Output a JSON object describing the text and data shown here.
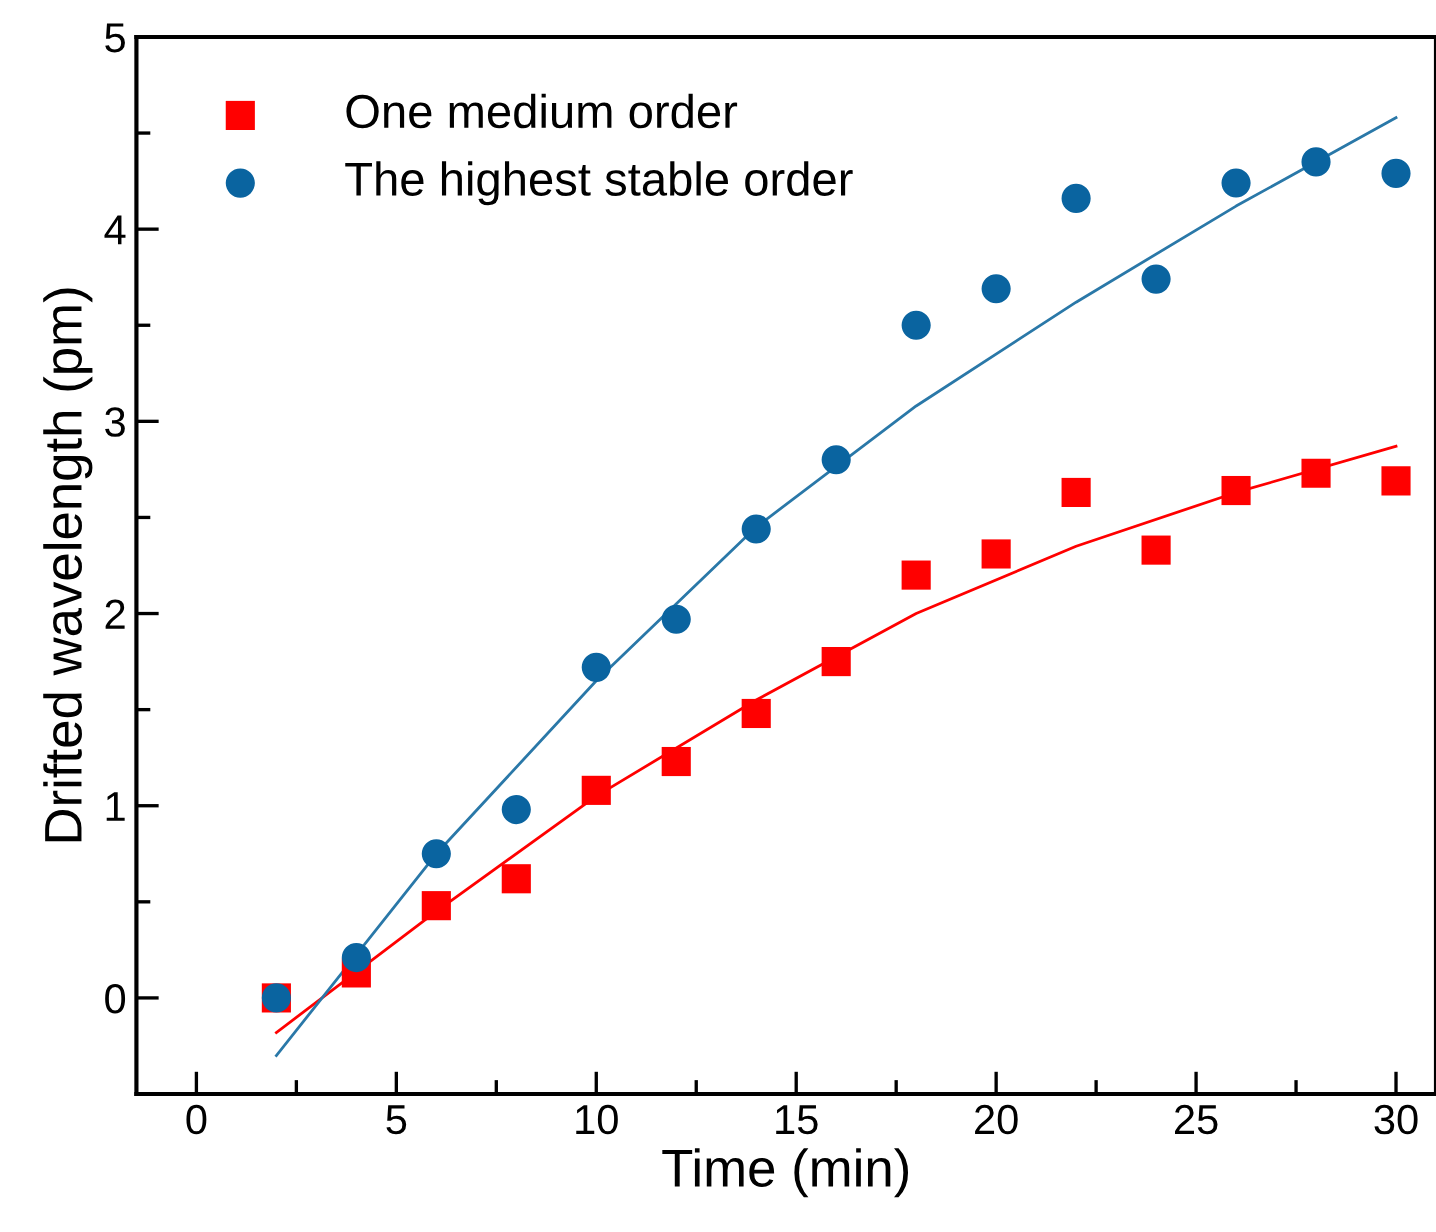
{
  "chart_data": {
    "type": "scatter",
    "xlabel": "Time (min)",
    "ylabel": "Drifted wavelength (pm)",
    "xlim": [
      -1.5,
      31
    ],
    "ylim": [
      -0.5,
      5
    ],
    "xticks": [
      0,
      5,
      10,
      15,
      20,
      25,
      30
    ],
    "yticks": [
      0,
      1,
      2,
      3,
      4,
      5
    ],
    "grid": false,
    "legend": "top left",
    "series": [
      {
        "name": "One medium order",
        "color": "#ff0000",
        "marker": "square",
        "x": [
          2,
          4,
          6,
          8,
          10,
          12,
          14,
          16,
          18,
          20,
          22,
          24,
          26,
          28,
          30
        ],
        "values": [
          0,
          0.13,
          0.48,
          0.62,
          1.08,
          1.23,
          1.48,
          1.75,
          2.2,
          2.31,
          2.63,
          2.33,
          2.64,
          2.73,
          2.69
        ]
      },
      {
        "name": "The highest stable order",
        "color": "#0a64a0",
        "marker": "circle",
        "x": [
          2,
          4,
          6,
          8,
          10,
          12,
          14,
          16,
          18,
          20,
          22,
          24,
          26,
          28,
          30
        ],
        "values": [
          0,
          0.21,
          0.75,
          0.98,
          1.72,
          1.97,
          2.44,
          2.8,
          3.5,
          3.69,
          4.16,
          3.74,
          4.24,
          4.35,
          4.29
        ]
      },
      {
        "type": "line",
        "color": "#ff0000",
        "x": [
          2,
          6,
          10,
          14,
          18,
          22,
          26,
          30
        ],
        "values": [
          -0.18,
          0.45,
          1.05,
          1.55,
          2.0,
          2.35,
          2.63,
          2.87
        ]
      },
      {
        "type": "line",
        "color": "#2a78a8",
        "x": [
          2,
          6,
          10,
          14,
          18,
          22,
          26,
          30
        ],
        "values": [
          -0.3,
          0.75,
          1.65,
          2.45,
          3.08,
          3.62,
          4.12,
          4.58
        ]
      }
    ]
  }
}
